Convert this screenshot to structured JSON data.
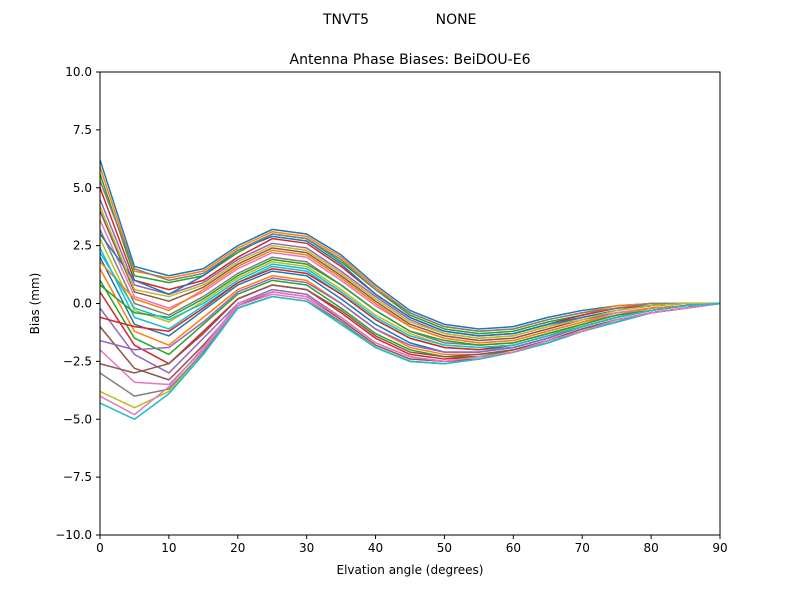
{
  "figure": {
    "suptitle_left": "TNVT5",
    "suptitle_right": "NONE"
  },
  "chart_data": {
    "type": "line",
    "title": "Antenna Phase Biases: BeiDOU-E6",
    "xlabel": "Elvation angle (degrees)",
    "ylabel": "Bias (mm)",
    "xlim": [
      0,
      90
    ],
    "ylim": [
      -10,
      10
    ],
    "xticks": [
      0,
      10,
      20,
      30,
      40,
      50,
      60,
      70,
      80,
      90
    ],
    "yticks": [
      -10.0,
      -7.5,
      -5.0,
      -2.5,
      0.0,
      2.5,
      5.0,
      7.5,
      10.0
    ],
    "grid": false,
    "legend": "none",
    "colors": [
      "#1f77b4",
      "#ff7f0e",
      "#2ca02c",
      "#d62728",
      "#9467bd",
      "#8c564b",
      "#e377c2",
      "#7f7f7f",
      "#bcbd22",
      "#17becf"
    ],
    "x": [
      0,
      5,
      10,
      15,
      20,
      25,
      30,
      35,
      40,
      45,
      50,
      55,
      60,
      65,
      70,
      75,
      80,
      85,
      90
    ],
    "series": [
      {
        "values": [
          6.2,
          1.6,
          1.2,
          1.5,
          2.5,
          3.2,
          3.0,
          2.1,
          0.8,
          -0.3,
          -0.9,
          -1.1,
          -1.0,
          -0.6,
          -0.3,
          -0.1,
          0.0,
          0.0,
          0.0
        ]
      },
      {
        "values": [
          5.9,
          1.4,
          1.1,
          1.4,
          2.4,
          3.1,
          2.9,
          2.0,
          0.7,
          -0.4,
          -1.0,
          -1.2,
          -1.1,
          -0.7,
          -0.4,
          -0.1,
          0.0,
          0.0,
          0.0
        ]
      },
      {
        "values": [
          5.6,
          1.2,
          0.9,
          1.2,
          2.2,
          3.0,
          2.8,
          1.8,
          0.6,
          -0.5,
          -1.1,
          -1.3,
          -1.2,
          -0.8,
          -0.5,
          -0.2,
          -0.1,
          0.0,
          0.0
        ]
      },
      {
        "values": [
          5.0,
          1.0,
          0.6,
          1.0,
          2.0,
          2.8,
          2.6,
          1.6,
          0.4,
          -0.6,
          -1.2,
          -1.4,
          -1.3,
          -0.9,
          -0.5,
          -0.2,
          -0.1,
          0.0,
          0.0
        ]
      },
      {
        "values": [
          4.5,
          0.8,
          0.4,
          0.9,
          1.9,
          2.6,
          2.4,
          1.4,
          0.3,
          -0.7,
          -1.3,
          -1.5,
          -1.4,
          -1.0,
          -0.6,
          -0.3,
          -0.1,
          0.0,
          0.0
        ]
      },
      {
        "values": [
          4.0,
          0.5,
          0.1,
          0.7,
          1.7,
          2.4,
          2.2,
          1.2,
          0.1,
          -0.9,
          -1.4,
          -1.6,
          -1.5,
          -1.1,
          -0.7,
          -0.4,
          -0.2,
          -0.1,
          0.0
        ]
      },
      {
        "values": [
          3.6,
          0.3,
          -0.2,
          0.5,
          1.5,
          2.2,
          2.0,
          1.0,
          -0.1,
          -1.0,
          -1.5,
          -1.7,
          -1.6,
          -1.2,
          -0.8,
          -0.4,
          -0.2,
          -0.1,
          0.0
        ]
      },
      {
        "values": [
          3.2,
          0.0,
          -0.5,
          0.3,
          1.3,
          2.0,
          1.8,
          0.8,
          -0.3,
          -1.2,
          -1.7,
          -1.8,
          -1.7,
          -1.3,
          -0.9,
          -0.5,
          -0.2,
          -0.1,
          0.0
        ]
      },
      {
        "values": [
          2.8,
          -0.3,
          -0.8,
          0.1,
          1.1,
          1.8,
          1.6,
          0.6,
          -0.5,
          -1.3,
          -1.8,
          -1.9,
          -1.8,
          -1.4,
          -0.9,
          -0.5,
          -0.3,
          -0.1,
          0.0
        ]
      },
      {
        "values": [
          2.4,
          -0.6,
          -1.1,
          -0.1,
          0.9,
          1.6,
          1.4,
          0.4,
          -0.7,
          -1.5,
          -1.9,
          -2.0,
          -1.9,
          -1.5,
          -1.0,
          -0.6,
          -0.3,
          -0.1,
          0.0
        ]
      },
      {
        "values": [
          2.0,
          -0.9,
          -1.4,
          -0.3,
          0.8,
          1.4,
          1.2,
          0.2,
          -0.9,
          -1.7,
          -2.1,
          -2.1,
          -1.9,
          -1.5,
          -1.0,
          -0.6,
          -0.3,
          -0.1,
          0.0
        ]
      },
      {
        "values": [
          1.5,
          -1.2,
          -1.8,
          -0.6,
          0.6,
          1.2,
          1.0,
          0.0,
          -1.1,
          -1.9,
          -2.2,
          -2.2,
          -2.0,
          -1.6,
          -1.1,
          -0.7,
          -0.4,
          -0.2,
          0.0
        ]
      },
      {
        "values": [
          1.0,
          -1.5,
          -2.2,
          -0.9,
          0.4,
          1.0,
          0.8,
          -0.2,
          -1.3,
          -2.0,
          -2.3,
          -2.3,
          -2.0,
          -1.6,
          -1.1,
          -0.7,
          -0.4,
          -0.2,
          0.0
        ]
      },
      {
        "values": [
          0.5,
          -1.8,
          -2.6,
          -1.2,
          0.2,
          0.8,
          0.6,
          -0.4,
          -1.5,
          -2.2,
          -2.4,
          -2.3,
          -2.1,
          -1.7,
          -1.2,
          -0.8,
          -0.4,
          -0.2,
          0.0
        ]
      },
      {
        "values": [
          -0.2,
          -2.2,
          -3.0,
          -1.5,
          0.0,
          0.6,
          0.4,
          -0.6,
          -1.7,
          -2.3,
          -2.5,
          -2.4,
          -2.1,
          -1.7,
          -1.2,
          -0.8,
          -0.4,
          -0.2,
          0.0
        ]
      },
      {
        "values": [
          -1.0,
          -2.8,
          -3.3,
          -1.8,
          -0.1,
          0.5,
          0.3,
          -0.7,
          -1.8,
          -2.4,
          -2.5,
          -2.4,
          -2.1,
          -1.7,
          -1.2,
          -0.8,
          -0.4,
          -0.2,
          0.0
        ]
      },
      {
        "values": [
          -2.0,
          -3.4,
          -3.5,
          -2.0,
          -0.1,
          0.4,
          0.2,
          -0.8,
          -1.9,
          -2.5,
          -2.6,
          -2.4,
          -2.1,
          -1.7,
          -1.2,
          -0.8,
          -0.4,
          -0.2,
          0.0
        ]
      },
      {
        "values": [
          -3.0,
          -4.0,
          -3.7,
          -2.1,
          -0.2,
          0.3,
          0.1,
          -0.8,
          -1.9,
          -2.5,
          -2.6,
          -2.4,
          -2.1,
          -1.7,
          -1.2,
          -0.8,
          -0.4,
          -0.2,
          0.0
        ]
      },
      {
        "values": [
          -3.8,
          -4.5,
          -3.8,
          -2.2,
          -0.2,
          0.3,
          0.1,
          -0.9,
          -1.9,
          -2.5,
          -2.6,
          -2.4,
          -2.1,
          -1.7,
          -1.2,
          -0.8,
          -0.4,
          -0.2,
          0.0
        ]
      },
      {
        "values": [
          -4.3,
          -5.0,
          -3.9,
          -2.2,
          -0.2,
          0.3,
          0.1,
          -0.9,
          -1.9,
          -2.5,
          -2.6,
          -2.4,
          -2.1,
          -1.7,
          -1.2,
          -0.8,
          -0.4,
          -0.2,
          0.0
        ]
      },
      {
        "values": [
          3.0,
          1.0,
          0.4,
          1.2,
          2.3,
          2.9,
          2.7,
          1.7,
          0.4,
          -0.6,
          -1.2,
          -1.4,
          -1.3,
          -0.9,
          -0.6,
          -0.3,
          -0.1,
          0.0,
          0.0
        ]
      },
      {
        "values": [
          1.8,
          0.2,
          -0.3,
          0.6,
          1.6,
          2.3,
          2.1,
          1.1,
          0.0,
          -1.0,
          -1.5,
          -1.7,
          -1.6,
          -1.2,
          -0.8,
          -0.5,
          -0.2,
          -0.1,
          0.0
        ]
      },
      {
        "values": [
          0.8,
          -0.4,
          -0.6,
          0.2,
          1.2,
          1.9,
          1.7,
          0.8,
          -0.3,
          -1.2,
          -1.6,
          -1.8,
          -1.7,
          -1.3,
          -0.9,
          -0.5,
          -0.3,
          -0.1,
          0.0
        ]
      },
      {
        "values": [
          -0.6,
          -1.0,
          -1.2,
          -0.2,
          0.9,
          1.5,
          1.3,
          0.4,
          -0.7,
          -1.5,
          -1.9,
          -2.0,
          -1.8,
          -1.4,
          -1.0,
          -0.6,
          -0.3,
          -0.1,
          0.0
        ]
      },
      {
        "values": [
          -1.6,
          -2.0,
          -1.9,
          -0.8,
          0.5,
          1.1,
          0.9,
          0.0,
          -1.1,
          -1.8,
          -2.1,
          -2.1,
          -1.9,
          -1.5,
          -1.0,
          -0.6,
          -0.3,
          -0.1,
          0.0
        ]
      },
      {
        "values": [
          -2.6,
          -3.0,
          -2.6,
          -1.3,
          0.2,
          0.8,
          0.6,
          -0.3,
          -1.4,
          -2.1,
          -2.3,
          -2.2,
          -2.0,
          -1.6,
          -1.1,
          -0.7,
          -0.4,
          -0.2,
          0.0
        ]
      },
      {
        "values": [
          -4.0,
          -4.8,
          -3.6,
          -1.9,
          0.0,
          0.5,
          0.3,
          -0.6,
          -1.7,
          -2.3,
          -2.5,
          -2.3,
          -2.1,
          -1.6,
          -1.2,
          -0.7,
          -0.4,
          -0.2,
          0.0
        ]
      },
      {
        "values": [
          5.3,
          1.5,
          1.0,
          1.3,
          2.3,
          3.0,
          2.8,
          1.9,
          0.6,
          -0.4,
          -1.0,
          -1.2,
          -1.1,
          -0.7,
          -0.4,
          -0.2,
          0.0,
          0.0,
          0.0
        ]
      },
      {
        "values": [
          4.2,
          0.6,
          0.3,
          0.8,
          1.8,
          2.5,
          2.3,
          1.3,
          0.2,
          -0.8,
          -1.3,
          -1.5,
          -1.4,
          -1.0,
          -0.7,
          -0.3,
          -0.1,
          0.0,
          0.0
        ]
      },
      {
        "values": [
          2.2,
          -0.2,
          -0.7,
          0.0,
          1.0,
          1.7,
          1.5,
          0.5,
          -0.6,
          -1.4,
          -1.8,
          -1.9,
          -1.8,
          -1.4,
          -1.0,
          -0.6,
          -0.3,
          -0.1,
          0.0
        ]
      }
    ]
  }
}
